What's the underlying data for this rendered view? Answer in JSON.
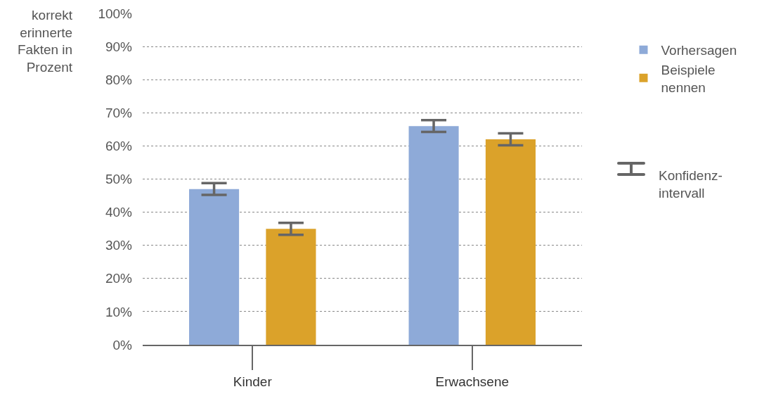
{
  "chart_data": {
    "type": "bar",
    "ylabel": "korrekt erinnerte Fakten in Prozent",
    "categories": [
      "Kinder",
      "Erwachsene"
    ],
    "series": [
      {
        "name": "Vorhersagen",
        "color": "#8eaad8",
        "values": [
          47,
          66
        ],
        "errors": [
          1.8,
          1.8
        ]
      },
      {
        "name": "Beispiele nennen",
        "color": "#dba22a",
        "values": [
          35,
          62
        ],
        "errors": [
          1.8,
          1.8
        ]
      }
    ],
    "ylim": [
      0,
      100
    ],
    "yticks": [
      {
        "value": 0,
        "label": "0%"
      },
      {
        "value": 10,
        "label": "10%"
      },
      {
        "value": 20,
        "label": "20%"
      },
      {
        "value": 30,
        "label": "30%"
      },
      {
        "value": 40,
        "label": "40%"
      },
      {
        "value": 50,
        "label": "50%"
      },
      {
        "value": 60,
        "label": "60%"
      },
      {
        "value": 70,
        "label": "70%"
      },
      {
        "value": 80,
        "label": "80%"
      },
      {
        "value": 90,
        "label": "90%"
      },
      {
        "value": 100,
        "label": "100%"
      }
    ],
    "grid": "y",
    "legend": "right",
    "annotations": [
      "Konfidenz-intervall"
    ]
  }
}
